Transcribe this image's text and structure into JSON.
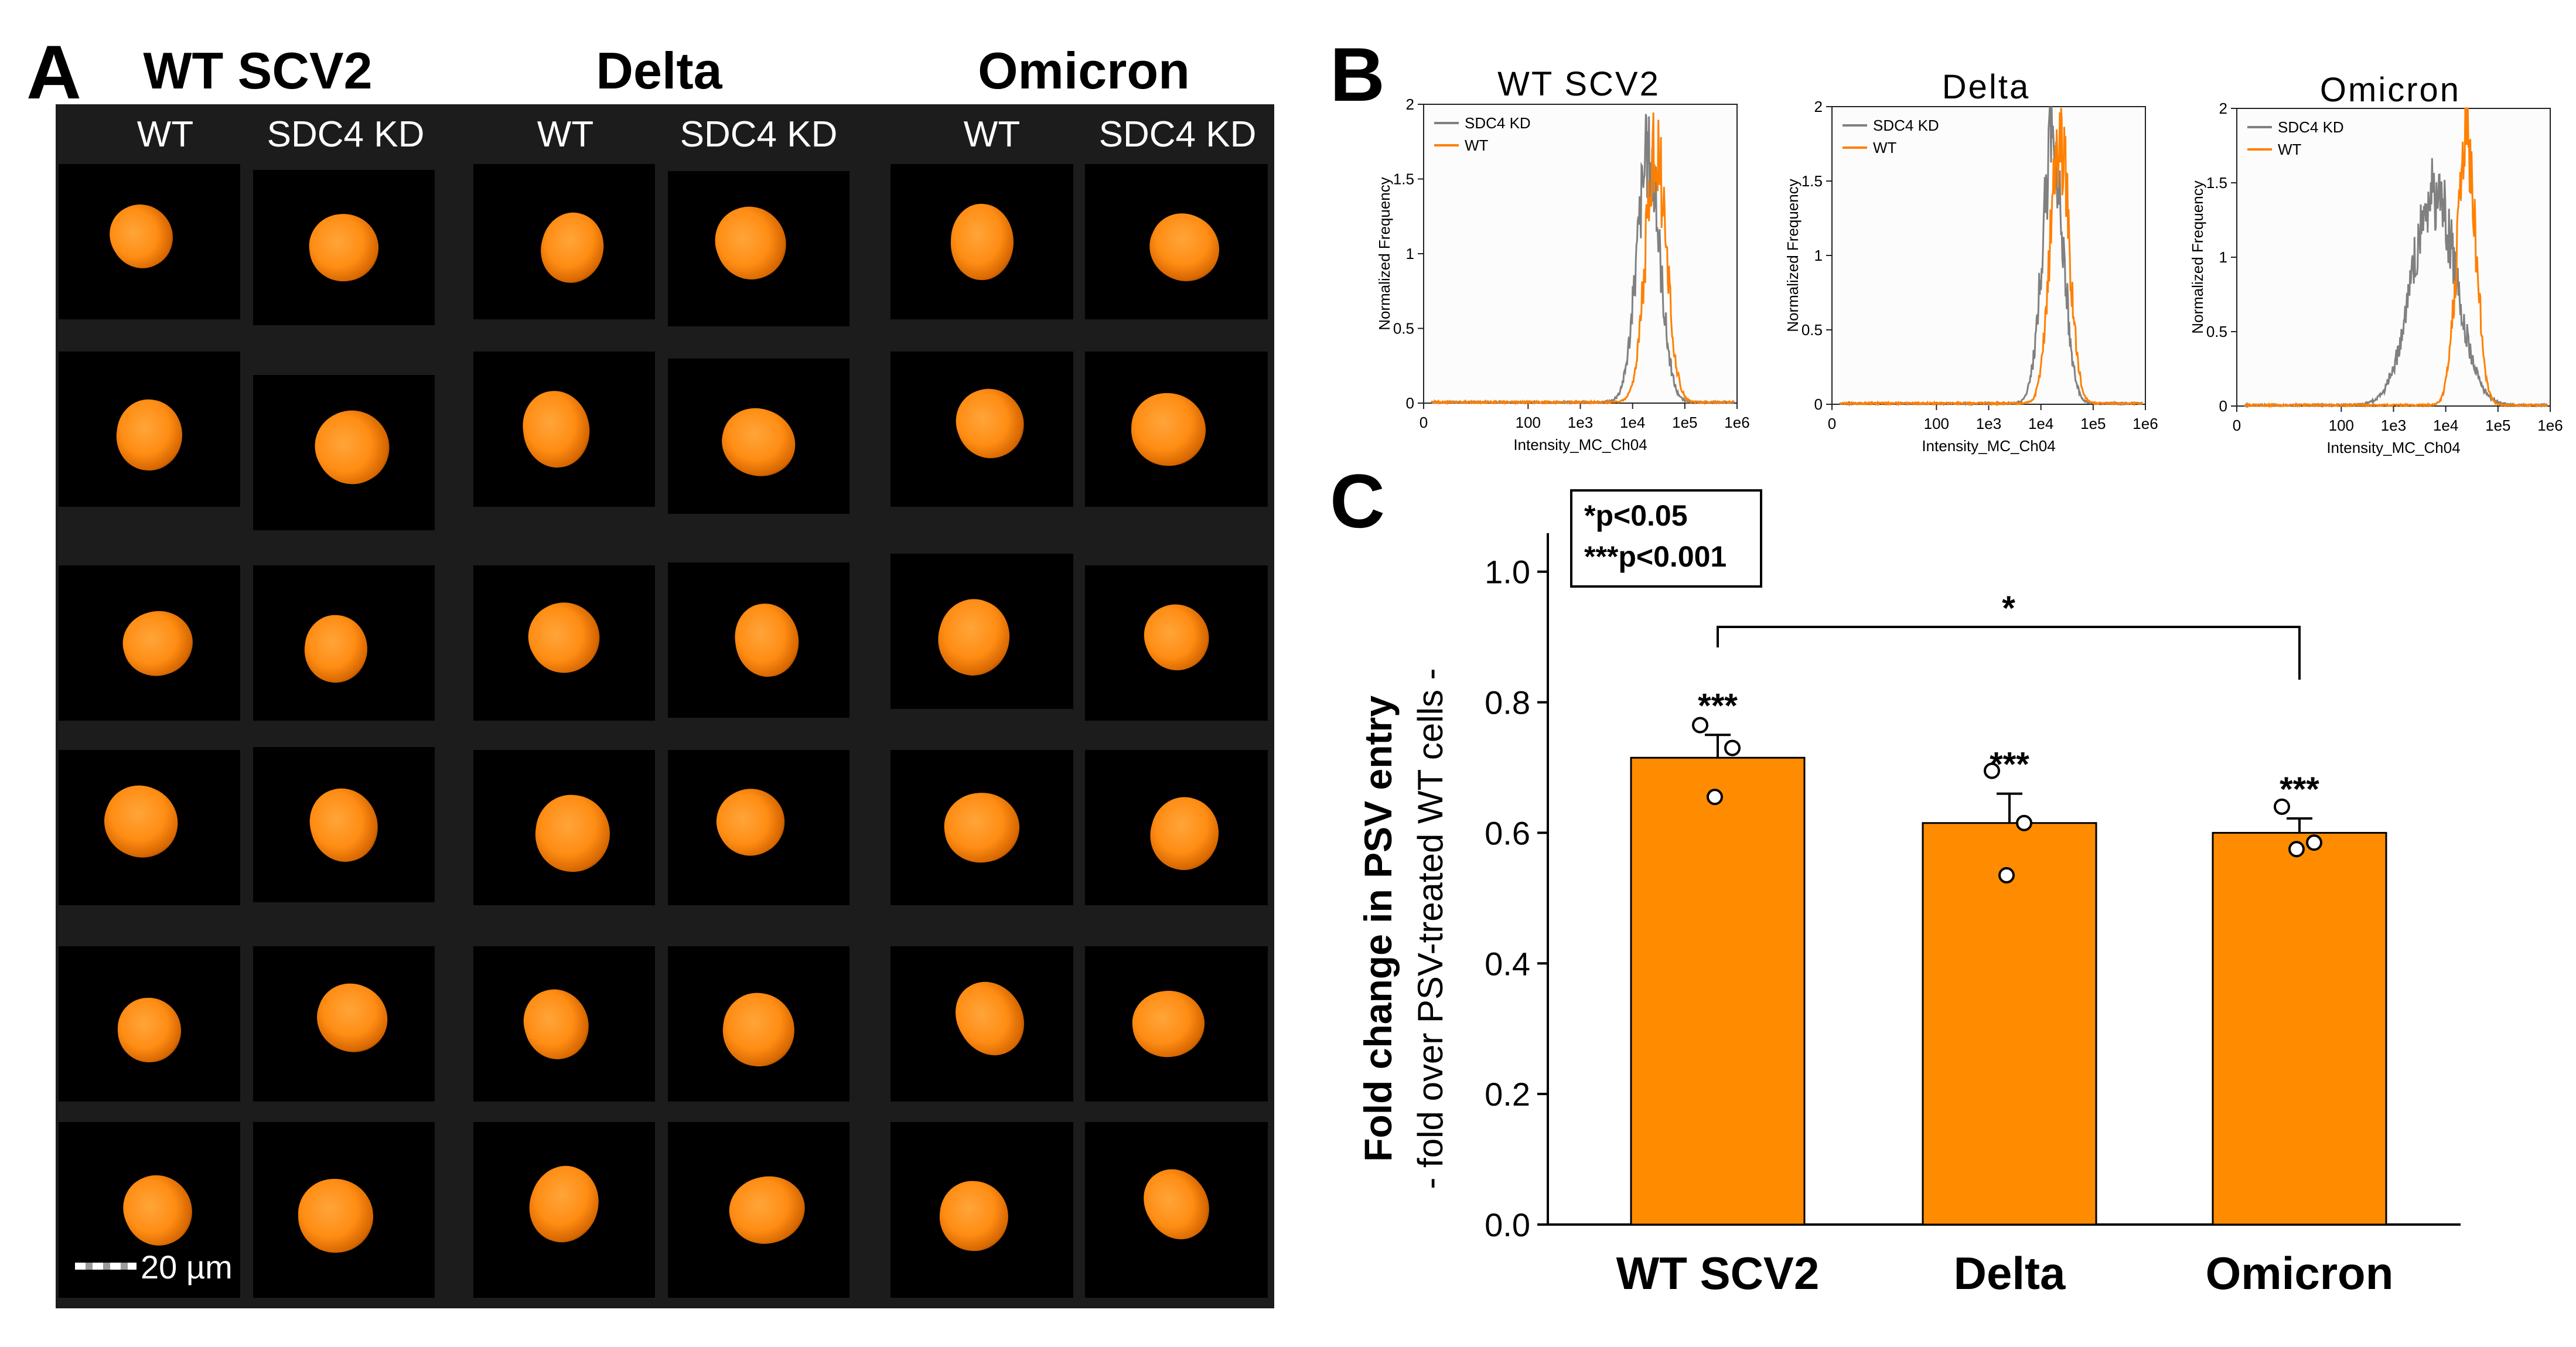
{
  "panel_a": {
    "letter": "A",
    "variants": [
      "WT SCV2",
      "Delta",
      "Omicron"
    ],
    "column_headers": [
      "WT",
      "SDC4 KD",
      "WT",
      "SDC4 KD",
      "WT",
      "SDC4 KD"
    ],
    "scale_bar_label": "20 µm",
    "cell_color": "#ff8c14"
  },
  "panel_b": {
    "letter": "B",
    "titles": [
      "WT SCV2",
      "Delta",
      "Omicron"
    ],
    "ylabel": "Normalized Frequency",
    "xlabel": "Intensity_MC_Ch04",
    "yticks": [
      "0",
      "0.5",
      "1",
      "1.5",
      "2"
    ],
    "xticks": [
      "0",
      "100",
      "1e3",
      "1e4",
      "1e5",
      "1e6"
    ],
    "legend": [
      "SDC4 KD",
      "WT"
    ],
    "colors": {
      "sdc4": "#808080",
      "wt": "#ff8000"
    }
  },
  "panel_c": {
    "letter": "C",
    "sig_legend": {
      "line1": "*p<0.05",
      "line2": "***p<0.001"
    },
    "bracket_star": "*"
  },
  "chart_data": [
    {
      "type": "line",
      "title": "WT SCV2",
      "xlabel": "Intensity_MC_Ch04",
      "ylabel": "Normalized Frequency",
      "xscale": "log",
      "ylim": [
        0,
        2
      ],
      "series": [
        {
          "name": "SDC4 KD",
          "peak_x": 20000,
          "peak_y": 1.65,
          "log_sigma": 0.22
        },
        {
          "name": "WT",
          "peak_x": 28000,
          "peak_y": 1.68,
          "log_sigma": 0.2
        }
      ]
    },
    {
      "type": "line",
      "title": "Delta",
      "xlabel": "Intensity_MC_Ch04",
      "ylabel": "Normalized Frequency",
      "xscale": "log",
      "ylim": [
        0,
        2
      ],
      "series": [
        {
          "name": "SDC4 KD",
          "peak_x": 17000,
          "peak_y": 1.75,
          "log_sigma": 0.2
        },
        {
          "name": "WT",
          "peak_x": 23000,
          "peak_y": 1.8,
          "log_sigma": 0.18
        }
      ]
    },
    {
      "type": "line",
      "title": "Omicron",
      "xlabel": "Intensity_MC_Ch04",
      "ylabel": "Normalized Frequency",
      "xscale": "log",
      "ylim": [
        0,
        2
      ],
      "series": [
        {
          "name": "SDC4 KD",
          "peak_x": 6000,
          "peak_y": 1.42,
          "log_sigma": 0.42
        },
        {
          "name": "WT",
          "peak_x": 25000,
          "peak_y": 1.8,
          "log_sigma": 0.18
        }
      ]
    },
    {
      "type": "bar",
      "categories": [
        "WT SCV2",
        "Delta",
        "Omicron"
      ],
      "values": [
        0.715,
        0.615,
        0.6
      ],
      "errors": [
        0.035,
        0.045,
        0.022
      ],
      "points": [
        [
          0.765,
          0.73,
          0.655
        ],
        [
          0.695,
          0.615,
          0.535
        ],
        [
          0.64,
          0.585,
          0.575
        ]
      ],
      "significance": [
        "***",
        "***",
        "***"
      ],
      "ylabel": "Fold change in PSV entry",
      "ylabel2": "- fold over PSV-treated WT cells -",
      "ylim": [
        0,
        1.05
      ],
      "yticks": [
        "0.0",
        "0.2",
        "0.4",
        "0.6",
        "0.8",
        "1.0"
      ],
      "bar_color": "#ff8c00"
    }
  ]
}
